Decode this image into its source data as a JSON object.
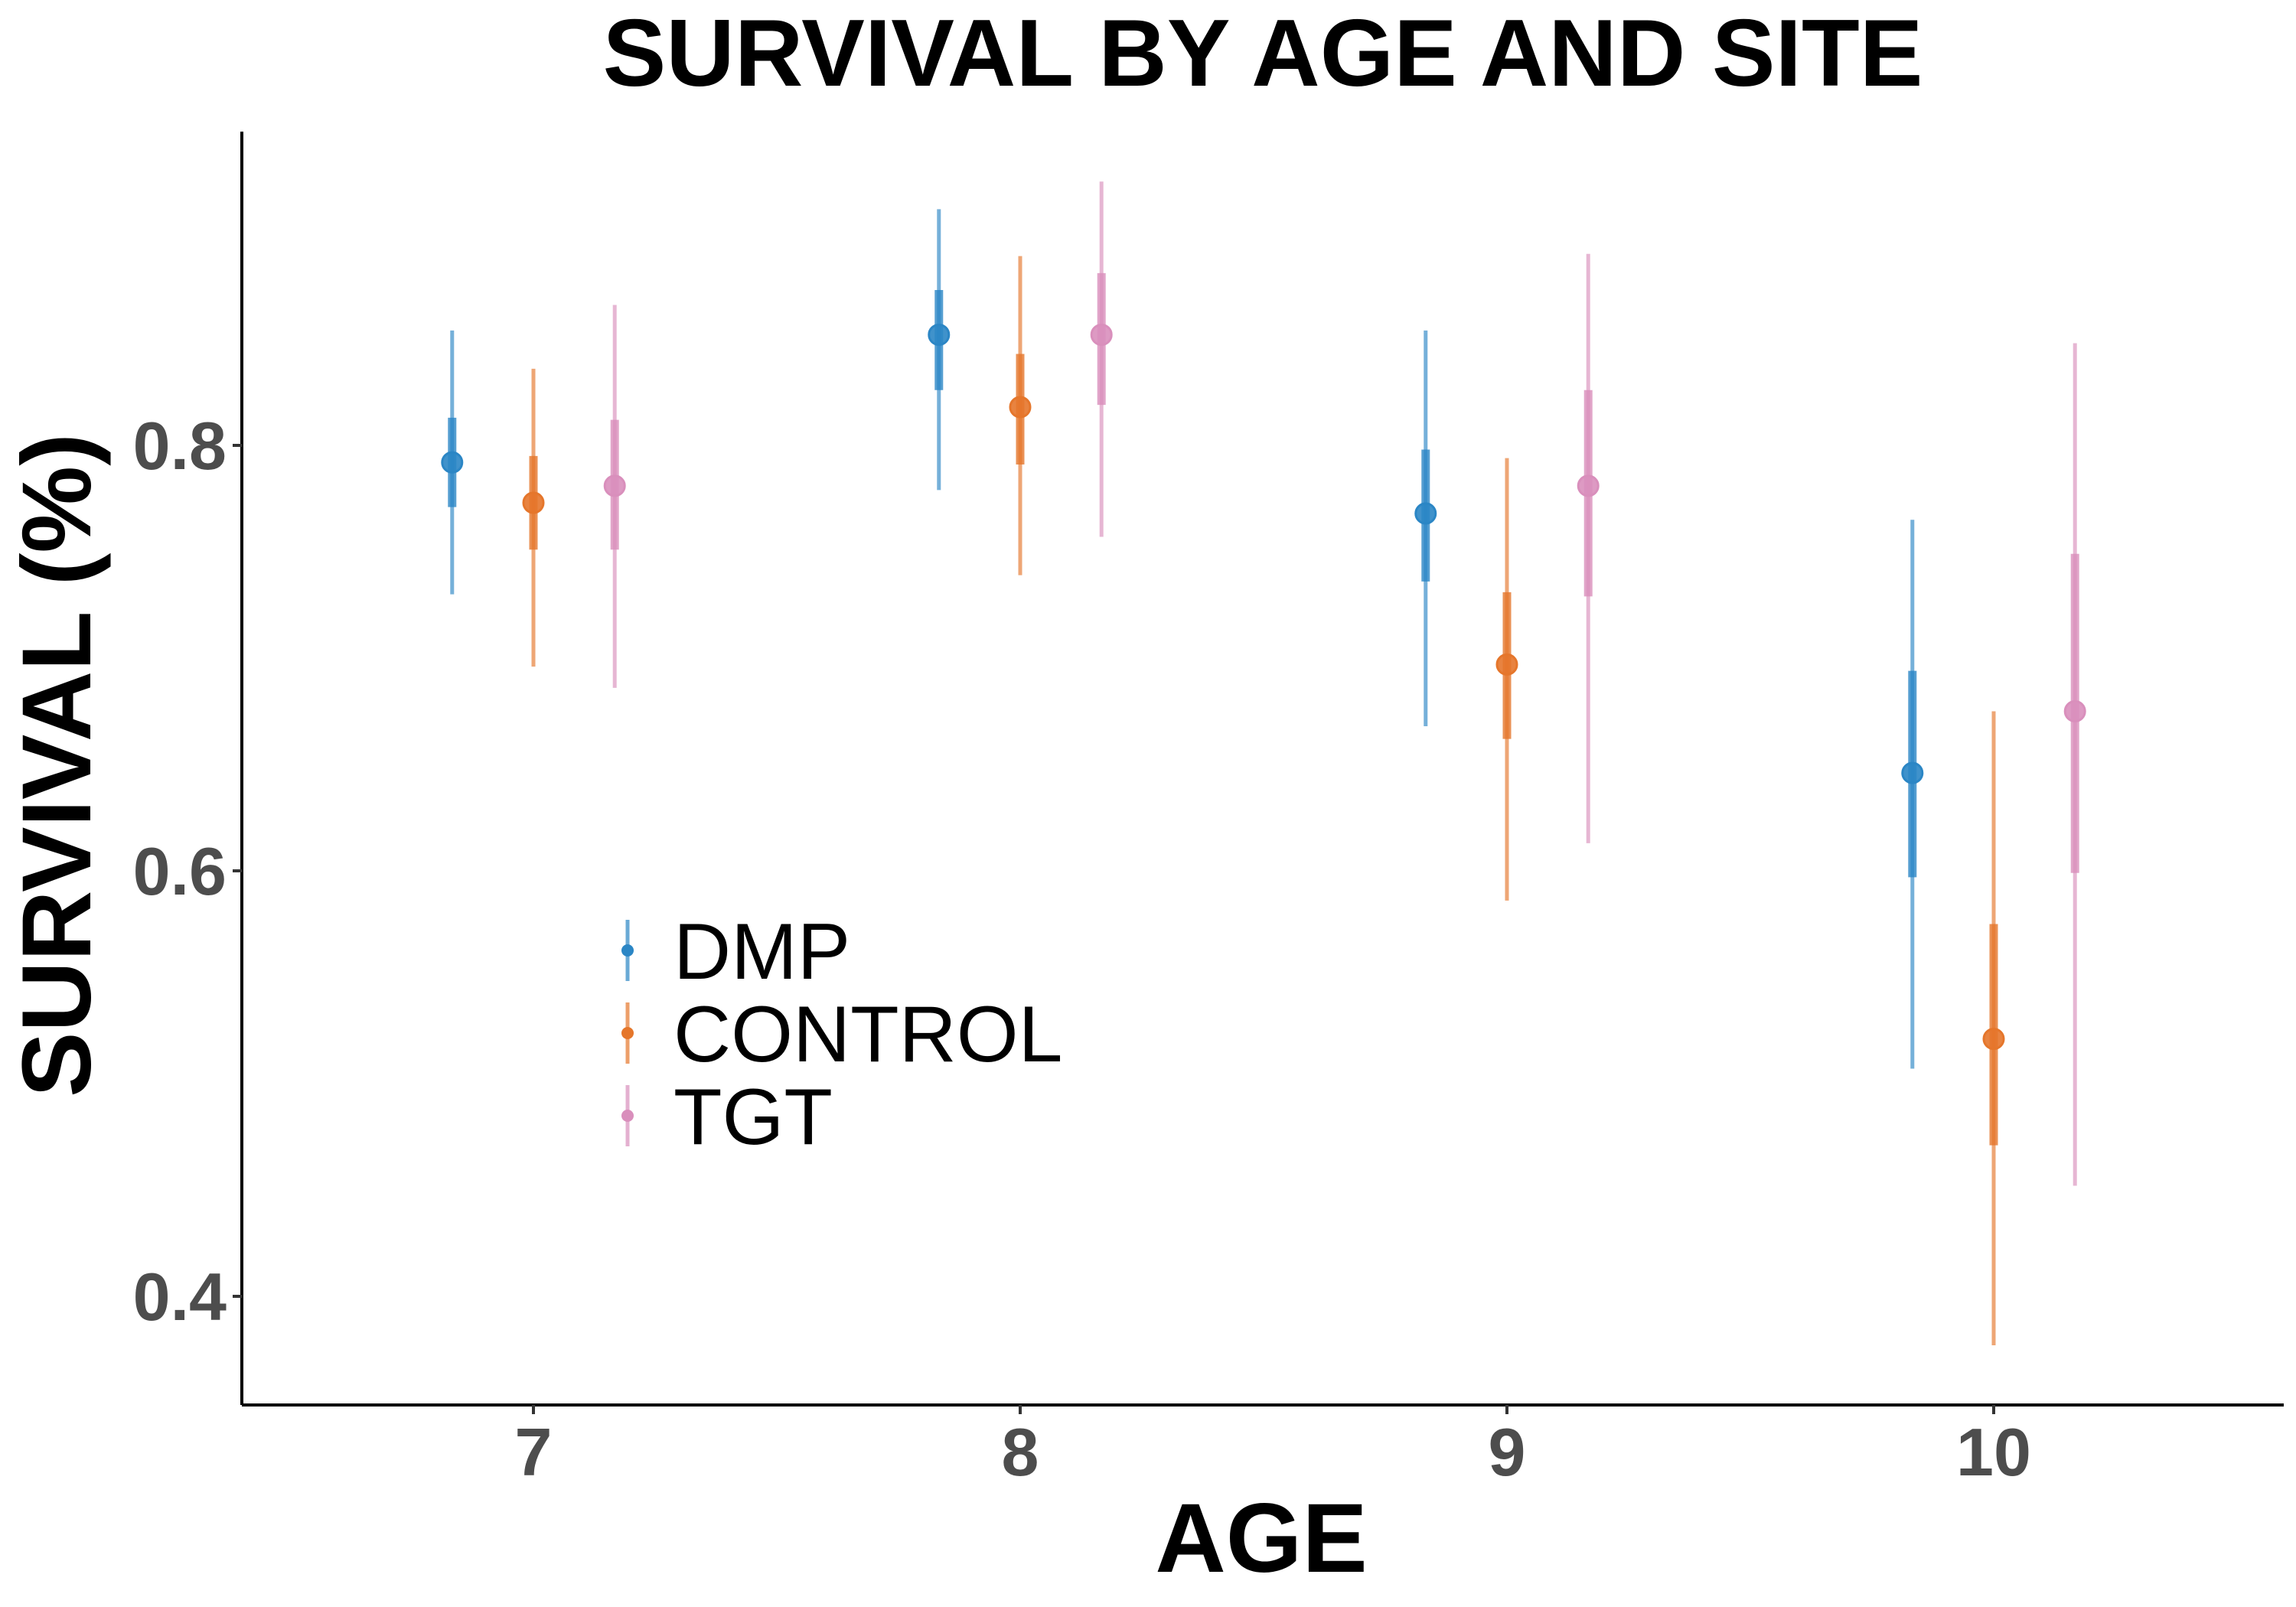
{
  "chart_data": {
    "type": "scatter",
    "title": "SURVIVAL BY AGE AND SITE",
    "xlabel": "AGE",
    "ylabel": "SURVIVAL (%)",
    "x_ticks": [
      "7",
      "8",
      "9",
      "10"
    ],
    "y_ticks": [
      "0.4",
      "0.6",
      "0.8"
    ],
    "xlim": [
      6.4,
      10.6
    ],
    "ylim": [
      0.35,
      0.95
    ],
    "grid": false,
    "legend_position": "center-left",
    "series": [
      {
        "name": "DMP",
        "color": "#2b86c5",
        "offset": -0.167,
        "points": [
          {
            "x": 7,
            "y": 0.792,
            "lo_inner": 0.771,
            "hi_inner": 0.813,
            "lo_outer": 0.73,
            "hi_outer": 0.854
          },
          {
            "x": 8,
            "y": 0.852,
            "lo_inner": 0.826,
            "hi_inner": 0.873,
            "lo_outer": 0.779,
            "hi_outer": 0.911
          },
          {
            "x": 9,
            "y": 0.768,
            "lo_inner": 0.736,
            "hi_inner": 0.798,
            "lo_outer": 0.668,
            "hi_outer": 0.854
          },
          {
            "x": 10,
            "y": 0.646,
            "lo_inner": 0.597,
            "hi_inner": 0.694,
            "lo_outer": 0.507,
            "hi_outer": 0.765
          }
        ]
      },
      {
        "name": "CONTROL",
        "color": "#e5762b",
        "offset": 0,
        "points": [
          {
            "x": 7,
            "y": 0.773,
            "lo_inner": 0.751,
            "hi_inner": 0.795,
            "lo_outer": 0.696,
            "hi_outer": 0.836
          },
          {
            "x": 8,
            "y": 0.818,
            "lo_inner": 0.791,
            "hi_inner": 0.843,
            "lo_outer": 0.739,
            "hi_outer": 0.889
          },
          {
            "x": 9,
            "y": 0.697,
            "lo_inner": 0.662,
            "hi_inner": 0.731,
            "lo_outer": 0.586,
            "hi_outer": 0.794
          },
          {
            "x": 10,
            "y": 0.521,
            "lo_inner": 0.471,
            "hi_inner": 0.575,
            "lo_outer": 0.377,
            "hi_outer": 0.675
          }
        ]
      },
      {
        "name": "TGT",
        "color": "#d98fbc",
        "offset": 0.167,
        "points": [
          {
            "x": 7,
            "y": 0.781,
            "lo_inner": 0.751,
            "hi_inner": 0.812,
            "lo_outer": 0.686,
            "hi_outer": 0.866
          },
          {
            "x": 8,
            "y": 0.852,
            "lo_inner": 0.819,
            "hi_inner": 0.881,
            "lo_outer": 0.757,
            "hi_outer": 0.924
          },
          {
            "x": 9,
            "y": 0.781,
            "lo_inner": 0.729,
            "hi_inner": 0.826,
            "lo_outer": 0.613,
            "hi_outer": 0.89
          },
          {
            "x": 10,
            "y": 0.675,
            "lo_inner": 0.599,
            "hi_inner": 0.749,
            "lo_outer": 0.452,
            "hi_outer": 0.848
          }
        ]
      }
    ]
  }
}
